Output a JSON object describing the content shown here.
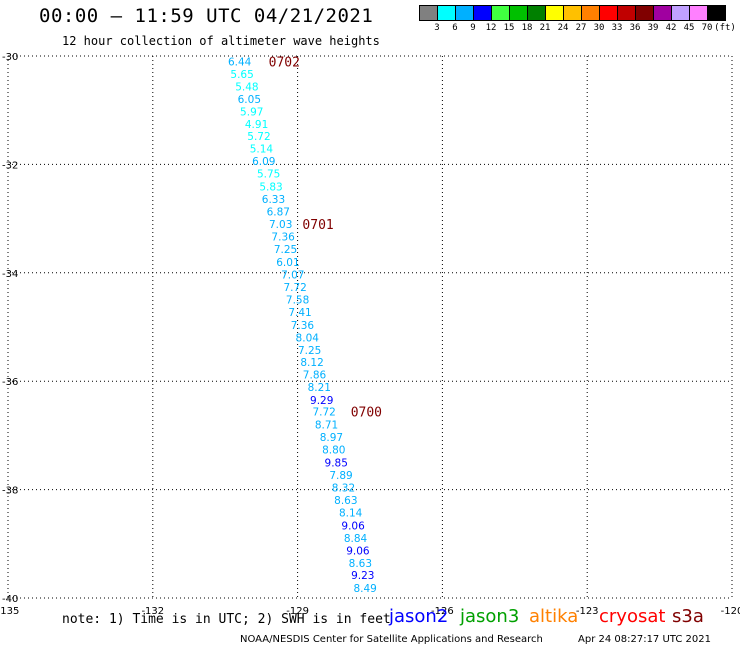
{
  "header": {
    "title": "00:00 – 11:59 UTC 04/21/2021",
    "subtitle": "12 hour collection of altimeter wave heights"
  },
  "legend": {
    "colors": [
      "#808080",
      "#00ffff",
      "#00b0ff",
      "#0000ff",
      "#40ff40",
      "#00c000",
      "#008000",
      "#ffff00",
      "#ffc000",
      "#ff8000",
      "#ff0000",
      "#c00000",
      "#800000",
      "#a000a0",
      "#c0a0ff",
      "#ff80ff",
      "#000000"
    ],
    "ticks": [
      "3",
      "6",
      "9",
      "12",
      "15",
      "18",
      "21",
      "24",
      "27",
      "30",
      "33",
      "36",
      "39",
      "42",
      "45",
      "70",
      "(ft)"
    ]
  },
  "map": {
    "lat_labels": [
      "-30",
      "-32",
      "-34",
      "-36",
      "-38",
      "-40"
    ],
    "lon_labels": [
      "-135",
      "-132",
      "-129",
      "-126",
      "-123",
      "-120"
    ],
    "lat_range": [
      -40,
      -30
    ],
    "lon_range": [
      -135,
      -120
    ]
  },
  "chart_data": {
    "type": "scatter",
    "title": "00:00 – 11:59 UTC 04/21/2021",
    "subtitle": "12 hour collection of altimeter wave heights",
    "xlabel": "",
    "ylabel": "",
    "xlim": [
      -135,
      -120
    ],
    "ylim": [
      -40,
      -30
    ],
    "grid": true,
    "points": [
      {
        "lon": -130.2,
        "lat": -30.1,
        "swh": "6.44"
      },
      {
        "lon": -130.15,
        "lat": -30.33,
        "swh": "5.65"
      },
      {
        "lon": -130.05,
        "lat": -30.56,
        "swh": "5.48"
      },
      {
        "lon": -130.0,
        "lat": -30.79,
        "swh": "6.05"
      },
      {
        "lon": -129.95,
        "lat": -31.02,
        "swh": "5.97"
      },
      {
        "lon": -129.85,
        "lat": -31.25,
        "swh": "4.91"
      },
      {
        "lon": -129.8,
        "lat": -31.48,
        "swh": "5.72"
      },
      {
        "lon": -129.75,
        "lat": -31.71,
        "swh": "5.14"
      },
      {
        "lon": -129.7,
        "lat": -31.94,
        "swh": "6.09"
      },
      {
        "lon": -129.6,
        "lat": -32.17,
        "swh": "5.75"
      },
      {
        "lon": -129.55,
        "lat": -32.41,
        "swh": "5.83"
      },
      {
        "lon": -129.5,
        "lat": -32.64,
        "swh": "6.33"
      },
      {
        "lon": -129.4,
        "lat": -32.87,
        "swh": "6.87"
      },
      {
        "lon": -129.35,
        "lat": -33.1,
        "swh": "7.03"
      },
      {
        "lon": -129.3,
        "lat": -33.33,
        "swh": "7.36"
      },
      {
        "lon": -129.25,
        "lat": -33.56,
        "swh": "7.25"
      },
      {
        "lon": -129.2,
        "lat": -33.8,
        "swh": "6.01"
      },
      {
        "lon": -129.1,
        "lat": -34.03,
        "swh": "7.07"
      },
      {
        "lon": -129.05,
        "lat": -34.26,
        "swh": "7.72"
      },
      {
        "lon": -129.0,
        "lat": -34.49,
        "swh": "7.58"
      },
      {
        "lon": -128.95,
        "lat": -34.72,
        "swh": "7.41"
      },
      {
        "lon": -128.9,
        "lat": -34.96,
        "swh": "7.36"
      },
      {
        "lon": -128.8,
        "lat": -35.19,
        "swh": "8.04"
      },
      {
        "lon": -128.75,
        "lat": -35.42,
        "swh": "7.25"
      },
      {
        "lon": -128.7,
        "lat": -35.65,
        "swh": "8.12"
      },
      {
        "lon": -128.65,
        "lat": -35.88,
        "swh": "7.86"
      },
      {
        "lon": -128.55,
        "lat": -36.11,
        "swh": "8.21"
      },
      {
        "lon": -128.5,
        "lat": -36.35,
        "swh": "9.29"
      },
      {
        "lon": -128.45,
        "lat": -36.56,
        "swh": "7.72"
      },
      {
        "lon": -128.4,
        "lat": -36.8,
        "swh": "8.71"
      },
      {
        "lon": -128.3,
        "lat": -37.03,
        "swh": "8.97"
      },
      {
        "lon": -128.25,
        "lat": -37.26,
        "swh": "8.80"
      },
      {
        "lon": -128.2,
        "lat": -37.5,
        "swh": "9.85"
      },
      {
        "lon": -128.1,
        "lat": -37.73,
        "swh": "7.89"
      },
      {
        "lon": -128.05,
        "lat": -37.96,
        "swh": "8.32"
      },
      {
        "lon": -128.0,
        "lat": -38.19,
        "swh": "8.63"
      },
      {
        "lon": -127.9,
        "lat": -38.42,
        "swh": "8.14"
      },
      {
        "lon": -127.85,
        "lat": -38.66,
        "swh": "9.06"
      },
      {
        "lon": -127.8,
        "lat": -38.89,
        "swh": "8.84"
      },
      {
        "lon": -127.75,
        "lat": -39.12,
        "swh": "9.06"
      },
      {
        "lon": -127.7,
        "lat": -39.35,
        "swh": "8.63"
      },
      {
        "lon": -127.65,
        "lat": -39.58,
        "swh": "9.23"
      },
      {
        "lon": -127.6,
        "lat": -39.82,
        "swh": "8.49"
      }
    ],
    "time_labels": [
      {
        "lon": -129.6,
        "lat": -30.1,
        "text": "0702"
      },
      {
        "lon": -128.9,
        "lat": -33.1,
        "text": "0701"
      },
      {
        "lon": -127.9,
        "lat": -36.56,
        "text": "0700"
      }
    ]
  },
  "notes": {
    "note_text": "note: 1) Time is in UTC; 2) SWH is in feet",
    "satellites": [
      {
        "name": "jason2",
        "color": "#0000ff"
      },
      {
        "name": "jason3",
        "color": "#00a000"
      },
      {
        "name": "altika",
        "color": "#ff8000"
      },
      {
        "name": "cryosat",
        "color": "#ff0000"
      },
      {
        "name": "s3a",
        "color": "#800000"
      }
    ],
    "credit": "NOAA/NESDIS Center for Satellite Applications and Research",
    "timestamp": "Apr 24 08:27:17 UTC 2021"
  }
}
